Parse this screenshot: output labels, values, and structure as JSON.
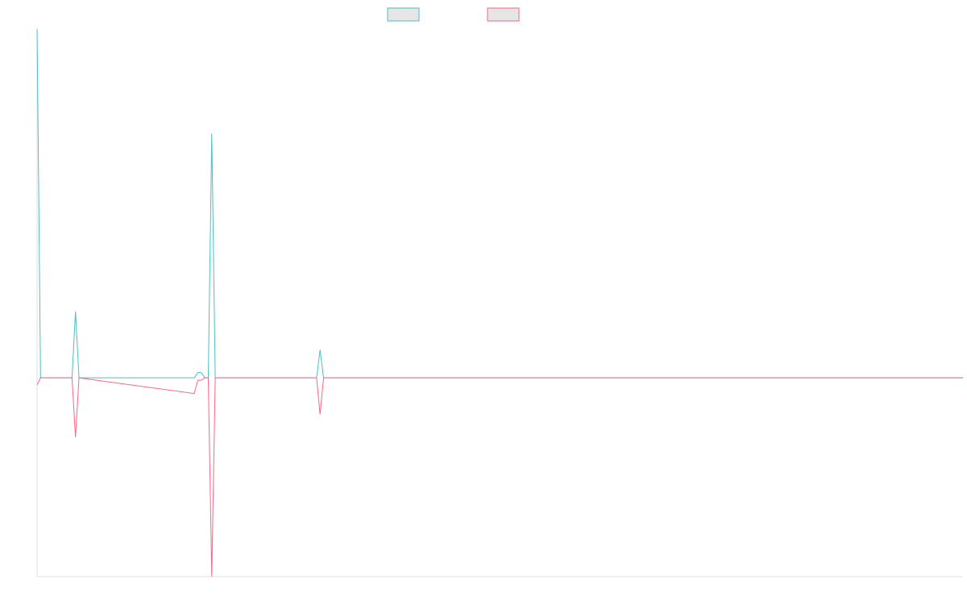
{
  "chart_data": {
    "type": "line",
    "x": [
      0,
      1,
      10,
      11,
      12,
      45,
      46,
      47,
      48,
      49,
      50,
      51,
      80,
      81,
      82,
      265
    ],
    "series": [
      {
        "color": "#4bc0c0",
        "values": [
          100,
          0,
          0,
          19,
          0,
          0,
          1.5,
          1.5,
          0,
          0,
          70,
          0,
          0,
          8,
          0,
          0
        ]
      },
      {
        "color": "#ff6384",
        "values": [
          -2,
          0,
          0,
          -17,
          0,
          -4.5,
          -0.7,
          -0.7,
          0,
          0,
          -57,
          0,
          0,
          -10.5,
          0,
          0
        ]
      }
    ],
    "xlim": [
      0,
      265
    ],
    "ylim": [
      -57,
      100
    ],
    "grid": false,
    "legend": "top"
  }
}
